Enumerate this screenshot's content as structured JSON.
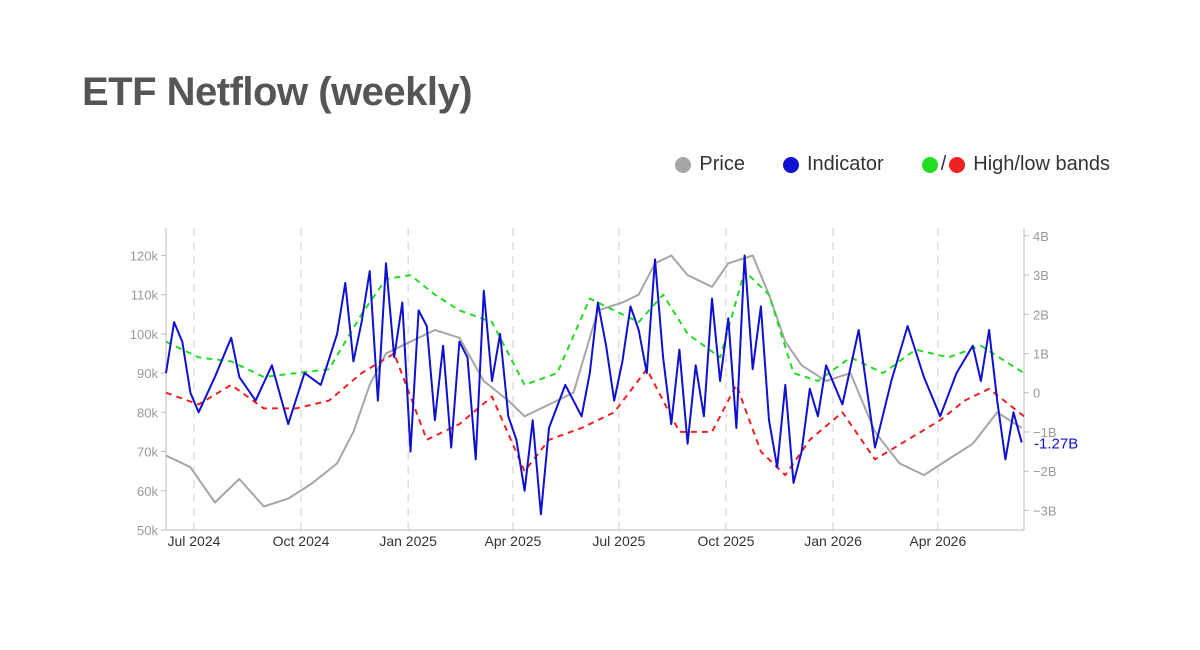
{
  "chart_data": {
    "type": "line",
    "title": "ETF Netflow (weekly)",
    "legend": {
      "placement": "top-right",
      "items": [
        {
          "key": "price",
          "label": "Price",
          "color": "#a6a6a6"
        },
        {
          "key": "indicator",
          "label": "Indicator",
          "color": "#1010d0"
        },
        {
          "key": "bands",
          "label": "High/low bands",
          "colors": [
            "#22dd22",
            "#ee2222"
          ]
        }
      ]
    },
    "x_axis": {
      "type": "date",
      "range": [
        "2024-06-07",
        "2026-06-14"
      ],
      "tick_labels": [
        "Jul 2024",
        "Oct 2024",
        "Jan 2025",
        "Apr 2025",
        "Jul 2025",
        "Oct 2025",
        "Jan 2026",
        "Apr 2026"
      ],
      "tick_dates": [
        "2024-07-01",
        "2024-10-01",
        "2025-01-01",
        "2025-04-01",
        "2025-07-01",
        "2025-10-01",
        "2026-01-01",
        "2026-04-01"
      ],
      "grid": "dashed-vertical"
    },
    "y_left": {
      "label": "",
      "range": [
        50000,
        127000
      ],
      "tick_labels": [
        "50k",
        "60k",
        "70k",
        "80k",
        "90k",
        "100k",
        "110k",
        "120k"
      ],
      "tick_values": [
        50000,
        60000,
        70000,
        80000,
        90000,
        100000,
        110000,
        120000
      ]
    },
    "y_right": {
      "label": "",
      "range": [
        -3.5,
        4.2
      ],
      "tick_labels": [
        "−3B",
        "−2B",
        "−1B",
        "0",
        "1B",
        "2B",
        "3B",
        "4B"
      ],
      "tick_values": [
        -3,
        -2,
        -1,
        0,
        1,
        2,
        3,
        4
      ]
    },
    "last_value_label": "-1.27B",
    "series": [
      {
        "name": "Price",
        "axis": "left",
        "color": "#a6a6a6",
        "dash": "solid",
        "x": [
          "2024-06-07",
          "2024-06-28",
          "2024-07-19",
          "2024-08-09",
          "2024-08-30",
          "2024-09-20",
          "2024-10-11",
          "2024-11-01",
          "2024-11-15",
          "2024-11-29",
          "2024-12-13",
          "2025-01-03",
          "2025-01-24",
          "2025-02-14",
          "2025-03-07",
          "2025-03-28",
          "2025-04-11",
          "2025-05-02",
          "2025-05-23",
          "2025-06-13",
          "2025-07-04",
          "2025-07-18",
          "2025-08-01",
          "2025-08-15",
          "2025-08-29",
          "2025-09-19",
          "2025-10-03",
          "2025-10-24",
          "2025-11-07",
          "2025-11-21",
          "2025-12-05",
          "2025-12-26",
          "2026-01-16",
          "2026-02-06",
          "2026-02-27",
          "2026-03-20",
          "2026-04-10",
          "2026-05-01",
          "2026-05-22",
          "2026-06-12"
        ],
        "values": [
          69000,
          66000,
          57000,
          63000,
          56000,
          58000,
          62000,
          67000,
          75000,
          87000,
          95000,
          98000,
          101000,
          99000,
          88000,
          83000,
          79000,
          82000,
          85000,
          106000,
          108000,
          110000,
          118000,
          120000,
          115000,
          112000,
          118000,
          120000,
          110000,
          98000,
          92000,
          88000,
          90000,
          75000,
          67000,
          64000,
          68000,
          72000,
          80000,
          76000
        ]
      },
      {
        "name": "Indicator",
        "axis": "right",
        "color": "#1010d0",
        "dash": "solid",
        "x": [
          "2024-06-07",
          "2024-06-14",
          "2024-06-21",
          "2024-06-28",
          "2024-07-05",
          "2024-07-19",
          "2024-08-02",
          "2024-08-09",
          "2024-08-23",
          "2024-09-06",
          "2024-09-20",
          "2024-10-04",
          "2024-10-18",
          "2024-11-01",
          "2024-11-08",
          "2024-11-15",
          "2024-11-22",
          "2024-11-29",
          "2024-12-06",
          "2024-12-13",
          "2024-12-20",
          "2024-12-27",
          "2025-01-03",
          "2025-01-10",
          "2025-01-17",
          "2025-01-24",
          "2025-01-31",
          "2025-02-07",
          "2025-02-14",
          "2025-02-21",
          "2025-02-28",
          "2025-03-07",
          "2025-03-14",
          "2025-03-21",
          "2025-03-28",
          "2025-04-04",
          "2025-04-11",
          "2025-04-18",
          "2025-04-25",
          "2025-05-02",
          "2025-05-16",
          "2025-05-30",
          "2025-06-06",
          "2025-06-13",
          "2025-06-20",
          "2025-06-27",
          "2025-07-04",
          "2025-07-11",
          "2025-07-18",
          "2025-07-25",
          "2025-08-01",
          "2025-08-08",
          "2025-08-15",
          "2025-08-22",
          "2025-08-29",
          "2025-09-05",
          "2025-09-12",
          "2025-09-19",
          "2025-09-26",
          "2025-10-03",
          "2025-10-10",
          "2025-10-17",
          "2025-10-24",
          "2025-10-31",
          "2025-11-07",
          "2025-11-14",
          "2025-11-21",
          "2025-11-28",
          "2025-12-05",
          "2025-12-12",
          "2025-12-19",
          "2025-12-26",
          "2026-01-09",
          "2026-01-23",
          "2026-02-06",
          "2026-02-20",
          "2026-03-06",
          "2026-03-20",
          "2026-04-03",
          "2026-04-17",
          "2026-05-01",
          "2026-05-08",
          "2026-05-15",
          "2026-05-22",
          "2026-05-29",
          "2026-06-05",
          "2026-06-12"
        ],
        "values": [
          0.5,
          1.8,
          1.3,
          0,
          -0.5,
          0.4,
          1.4,
          0.4,
          -0.2,
          0.7,
          -0.8,
          0.5,
          0.2,
          1.5,
          2.8,
          0.8,
          1.8,
          3.1,
          -0.2,
          3.3,
          0.9,
          2.3,
          -1.5,
          2.1,
          1.7,
          -0.7,
          1.2,
          -1.4,
          1.3,
          0.9,
          -1.7,
          2.6,
          0.3,
          1.5,
          -0.6,
          -1.2,
          -2.5,
          -0.7,
          -3.1,
          -0.9,
          0.2,
          -0.6,
          0.5,
          2.3,
          1.2,
          -0.2,
          0.8,
          2.2,
          1.6,
          0.5,
          3.4,
          0.9,
          -0.8,
          1.1,
          -1.3,
          0.7,
          -0.6,
          2.4,
          0.3,
          1.9,
          -0.9,
          3.5,
          0.6,
          2.2,
          -0.7,
          -1.9,
          0.2,
          -2.3,
          -1.5,
          0.1,
          -0.6,
          0.7,
          -0.3,
          1.6,
          -1.4,
          0.3,
          1.7,
          0.4,
          -0.6,
          0.5,
          1.2,
          0.3,
          1.6,
          -0.2,
          -1.7,
          -0.5,
          -1.27
        ]
      },
      {
        "name": "High band",
        "axis": "right",
        "color": "#22dd22",
        "dash": "dashed",
        "x": [
          "2024-06-07",
          "2024-07-05",
          "2024-08-02",
          "2024-08-30",
          "2024-09-27",
          "2024-10-25",
          "2024-11-22",
          "2024-12-13",
          "2025-01-03",
          "2025-01-24",
          "2025-02-14",
          "2025-03-14",
          "2025-04-11",
          "2025-05-09",
          "2025-06-06",
          "2025-06-27",
          "2025-07-18",
          "2025-08-08",
          "2025-08-29",
          "2025-09-26",
          "2025-10-17",
          "2025-11-07",
          "2025-11-28",
          "2025-12-19",
          "2026-01-16",
          "2026-02-13",
          "2026-03-13",
          "2026-04-10",
          "2026-05-08",
          "2026-06-14"
        ],
        "values": [
          1.3,
          0.9,
          0.8,
          0.4,
          0.5,
          0.6,
          2.0,
          2.9,
          3.0,
          2.5,
          2.1,
          1.8,
          0.2,
          0.5,
          2.4,
          2.1,
          1.8,
          2.5,
          1.5,
          0.9,
          3.1,
          2.5,
          0.5,
          0.3,
          0.9,
          0.5,
          1.1,
          0.9,
          1.2,
          0.5
        ]
      },
      {
        "name": "Low band",
        "axis": "right",
        "color": "#ee2222",
        "dash": "dashed",
        "x": [
          "2024-06-07",
          "2024-07-05",
          "2024-08-02",
          "2024-08-30",
          "2024-09-27",
          "2024-10-25",
          "2024-11-22",
          "2024-12-20",
          "2025-01-17",
          "2025-02-14",
          "2025-03-14",
          "2025-04-11",
          "2025-05-02",
          "2025-05-30",
          "2025-06-27",
          "2025-07-25",
          "2025-08-22",
          "2025-09-19",
          "2025-10-10",
          "2025-10-31",
          "2025-11-21",
          "2025-12-12",
          "2026-01-09",
          "2026-02-06",
          "2026-03-06",
          "2026-04-03",
          "2026-04-24",
          "2026-05-15",
          "2026-06-14"
        ],
        "values": [
          0,
          -0.3,
          0.2,
          -0.4,
          -0.4,
          -0.2,
          0.5,
          1.0,
          -1.2,
          -0.8,
          -0.1,
          -2.0,
          -1.2,
          -0.9,
          -0.5,
          0.6,
          -1.0,
          -1.0,
          0.2,
          -1.5,
          -2.1,
          -1.2,
          -0.5,
          -1.7,
          -1.2,
          -0.7,
          -0.2,
          0.1,
          -0.6
        ]
      }
    ]
  }
}
